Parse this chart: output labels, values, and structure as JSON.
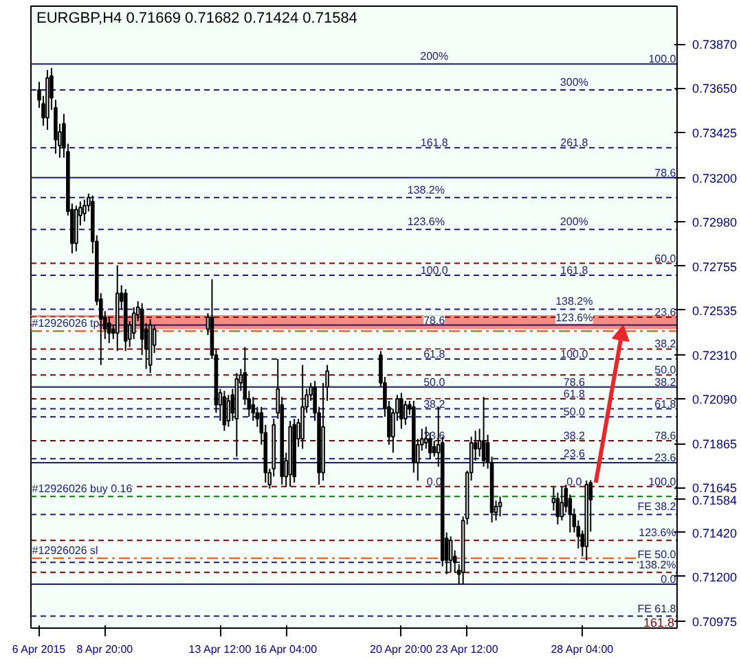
{
  "chart_data": {
    "type": "candlestick",
    "title": "EURGBP,H4  0.71669 0.71682 0.71424 0.71584",
    "x": [
      "2015-04-06T04:00",
      "2015-04-06T08:00",
      "2015-04-06T12:00",
      "2015-04-06T16:00",
      "2015-04-06T20:00",
      "2015-04-07T00:00",
      "2015-04-07T04:00",
      "2015-04-07T08:00",
      "2015-04-07T12:00",
      "2015-04-07T16:00",
      "2015-04-07T20:00",
      "2015-04-08T00:00",
      "2015-04-08T04:00",
      "2015-04-08T08:00",
      "2015-04-08T12:00",
      "2015-04-08T16:00",
      "2015-04-08T20:00",
      "2015-04-09T00:00",
      "2015-04-09T04:00",
      "2015-04-09T08:00",
      "2015-04-09T12:00",
      "2015-04-09T16:00",
      "2015-04-09T20:00",
      "2015-04-10T00:00",
      "2015-04-10T04:00",
      "2015-04-10T08:00",
      "2015-04-10T12:00",
      "2015-04-10T16:00",
      "2015-04-10T20:00",
      "2015-04-13T00:00",
      "2015-04-13T04:00",
      "2015-04-13T08:00",
      "2015-04-13T12:00",
      "2015-04-13T16:00",
      "2015-04-13T20:00",
      "2015-04-14T00:00",
      "2015-04-14T04:00",
      "2015-04-14T08:00",
      "2015-04-14T12:00",
      "2015-04-14T16:00",
      "2015-04-14T20:00",
      "2015-04-15T00:00",
      "2015-04-15T04:00",
      "2015-04-15T08:00",
      "2015-04-15T12:00",
      "2015-04-15T16:00",
      "2015-04-15T20:00",
      "2015-04-16T00:00",
      "2015-04-16T04:00",
      "2015-04-16T08:00",
      "2015-04-16T12:00",
      "2015-04-16T16:00",
      "2015-04-16T20:00",
      "2015-04-17T00:00",
      "2015-04-17T04:00",
      "2015-04-17T08:00",
      "2015-04-17T12:00",
      "2015-04-17T16:00",
      "2015-04-17T20:00",
      "2015-04-20T00:00",
      "2015-04-20T04:00",
      "2015-04-20T08:00",
      "2015-04-20T12:00",
      "2015-04-20T16:00",
      "2015-04-20T20:00",
      "2015-04-21T00:00",
      "2015-04-21T04:00",
      "2015-04-21T08:00",
      "2015-04-21T12:00",
      "2015-04-21T16:00",
      "2015-04-21T20:00",
      "2015-04-22T00:00",
      "2015-04-22T04:00",
      "2015-04-22T08:00",
      "2015-04-22T12:00",
      "2015-04-22T16:00",
      "2015-04-22T20:00",
      "2015-04-23T00:00",
      "2015-04-23T04:00",
      "2015-04-23T08:00",
      "2015-04-23T12:00",
      "2015-04-23T16:00",
      "2015-04-23T20:00",
      "2015-04-24T00:00",
      "2015-04-24T04:00",
      "2015-04-24T08:00",
      "2015-04-24T12:00",
      "2015-04-24T16:00",
      "2015-04-24T20:00",
      "2015-04-27T00:00",
      "2015-04-27T04:00",
      "2015-04-27T08:00",
      "2015-04-27T12:00",
      "2015-04-27T16:00",
      "2015-04-27T20:00",
      "2015-04-28T00:00",
      "2015-04-28T04:00",
      "2015-04-28T08:00",
      "2015-04-28T12:00"
    ],
    "ohlc": [
      [
        0.7364,
        0.7368,
        0.7355,
        0.7359
      ],
      [
        0.7357,
        0.7361,
        0.7346,
        0.735
      ],
      [
        0.735,
        0.7374,
        0.7344,
        0.737
      ],
      [
        0.7371,
        0.7375,
        0.7354,
        0.736
      ],
      [
        0.7355,
        0.7359,
        0.7332,
        0.7339
      ],
      [
        0.7336,
        0.7347,
        0.733,
        0.7343
      ],
      [
        0.7347,
        0.7352,
        0.733,
        0.7335
      ],
      [
        0.7333,
        0.7337,
        0.7301,
        0.7303
      ],
      [
        0.7304,
        0.7307,
        0.7282,
        0.7287
      ],
      [
        0.7287,
        0.7306,
        0.7283,
        0.7304
      ],
      [
        0.7301,
        0.7308,
        0.7296,
        0.7305
      ],
      [
        0.7302,
        0.7309,
        0.7298,
        0.7306
      ],
      [
        0.7306,
        0.7312,
        0.7303,
        0.731
      ],
      [
        0.7308,
        0.7311,
        0.7282,
        0.7288
      ],
      [
        0.7288,
        0.7291,
        0.7256,
        0.7258
      ],
      [
        0.7259,
        0.7262,
        0.7226,
        0.7249
      ],
      [
        0.725,
        0.7253,
        0.7239,
        0.7244
      ],
      [
        0.7247,
        0.725,
        0.7237,
        0.7242
      ],
      [
        0.7244,
        0.7246,
        0.7239,
        0.7242
      ],
      [
        0.7242,
        0.7276,
        0.7233,
        0.7262
      ],
      [
        0.7262,
        0.7266,
        0.7254,
        0.7258
      ],
      [
        0.7262,
        0.7264,
        0.7233,
        0.7238
      ],
      [
        0.7239,
        0.7248,
        0.7235,
        0.7246
      ],
      [
        0.7242,
        0.7255,
        0.7239,
        0.7252
      ],
      [
        0.7251,
        0.7258,
        0.7248,
        0.7255
      ],
      [
        0.7254,
        0.7257,
        0.7231,
        0.7239
      ],
      [
        0.7244,
        0.7247,
        0.7224,
        0.7234
      ],
      [
        0.7226,
        0.7249,
        0.7222,
        0.7246
      ],
      [
        0.7236,
        0.7246,
        0.7232,
        0.7244
      ],
      [
        0.7244,
        0.7252,
        0.7241,
        0.725
      ],
      [
        0.725,
        0.7269,
        0.7229,
        0.7231
      ],
      [
        0.7231,
        0.7234,
        0.7202,
        0.7206
      ],
      [
        0.7206,
        0.7214,
        0.7198,
        0.7212
      ],
      [
        0.721,
        0.7213,
        0.7193,
        0.7196
      ],
      [
        0.7198,
        0.7211,
        0.7195,
        0.7208
      ],
      [
        0.7211,
        0.7214,
        0.7198,
        0.7202
      ],
      [
        0.7199,
        0.7222,
        0.718,
        0.7219
      ],
      [
        0.7217,
        0.7224,
        0.7213,
        0.7221
      ],
      [
        0.7222,
        0.7235,
        0.7206,
        0.7209
      ],
      [
        0.7209,
        0.7213,
        0.72,
        0.7204
      ],
      [
        0.7206,
        0.721,
        0.7198,
        0.7202
      ],
      [
        0.7202,
        0.7205,
        0.7195,
        0.7199
      ],
      [
        0.7202,
        0.7205,
        0.7186,
        0.7192
      ],
      [
        0.7192,
        0.7196,
        0.7167,
        0.7172
      ],
      [
        0.7166,
        0.7174,
        0.7164,
        0.7172
      ],
      [
        0.7174,
        0.7199,
        0.717,
        0.7196
      ],
      [
        0.7202,
        0.7229,
        0.7199,
        0.7214
      ],
      [
        0.7206,
        0.721,
        0.7166,
        0.717
      ],
      [
        0.717,
        0.7182,
        0.7165,
        0.7178
      ],
      [
        0.7171,
        0.7198,
        0.7165,
        0.7195
      ],
      [
        0.7196,
        0.7199,
        0.7167,
        0.717
      ],
      [
        0.7189,
        0.7199,
        0.7185,
        0.7197
      ],
      [
        0.7189,
        0.7226,
        0.7184,
        0.7205
      ],
      [
        0.7205,
        0.7214,
        0.7202,
        0.7211
      ],
      [
        0.7211,
        0.7217,
        0.7208,
        0.7215
      ],
      [
        0.7215,
        0.7218,
        0.7198,
        0.7202
      ],
      [
        0.7202,
        0.7205,
        0.7166,
        0.7172
      ],
      [
        0.7172,
        0.7217,
        0.7168,
        0.7195
      ],
      [
        0.7215,
        0.7226,
        0.7208,
        0.7223
      ],
      [
        0.7231,
        0.7233,
        0.7215,
        0.7217
      ],
      [
        0.7217,
        0.722,
        0.72,
        0.7204
      ],
      [
        0.7205,
        0.7208,
        0.7186,
        0.719
      ],
      [
        0.719,
        0.7204,
        0.7182,
        0.7202
      ],
      [
        0.7202,
        0.7211,
        0.7198,
        0.7209
      ],
      [
        0.7209,
        0.7212,
        0.7194,
        0.7199
      ],
      [
        0.7199,
        0.7208,
        0.7196,
        0.7206
      ],
      [
        0.7206,
        0.7208,
        0.7201,
        0.7204
      ],
      [
        0.7205,
        0.7208,
        0.7172,
        0.7177
      ],
      [
        0.7177,
        0.7189,
        0.7168,
        0.7186
      ],
      [
        0.7186,
        0.7194,
        0.7183,
        0.7189
      ],
      [
        0.7187,
        0.7195,
        0.7184,
        0.7189
      ],
      [
        0.7189,
        0.7192,
        0.7179,
        0.7182
      ],
      [
        0.7185,
        0.7188,
        0.718,
        0.7182
      ],
      [
        0.7182,
        0.7205,
        0.7175,
        0.7186
      ],
      [
        0.7187,
        0.719,
        0.7125,
        0.7128
      ],
      [
        0.7139,
        0.7142,
        0.7121,
        0.7128
      ],
      [
        0.7128,
        0.714,
        0.7122,
        0.7138
      ],
      [
        0.713,
        0.7133,
        0.7122,
        0.7127
      ],
      [
        0.7123,
        0.7126,
        0.7116,
        0.7121
      ],
      [
        0.7122,
        0.715,
        0.7116,
        0.7148
      ],
      [
        0.7149,
        0.7173,
        0.7146,
        0.7172
      ],
      [
        0.7172,
        0.719,
        0.7168,
        0.7187
      ],
      [
        0.7187,
        0.7193,
        0.7178,
        0.7184
      ],
      [
        0.7184,
        0.7194,
        0.718,
        0.7188
      ],
      [
        0.7188,
        0.721,
        0.7175,
        0.7178
      ],
      [
        0.7187,
        0.7191,
        0.7174,
        0.7177
      ],
      [
        0.7177,
        0.718,
        0.7147,
        0.7152
      ],
      [
        0.7152,
        0.7158,
        0.7148,
        0.7155
      ],
      [
        0.7155,
        0.716,
        0.715,
        0.7157
      ],
      [
        0.7157,
        0.7165,
        0.7153,
        0.7159
      ],
      [
        0.7159,
        0.7162,
        0.7146,
        0.715
      ],
      [
        0.715,
        0.7165,
        0.7148,
        0.7157
      ],
      [
        0.7164,
        0.7166,
        0.7152,
        0.7155
      ],
      [
        0.7159,
        0.7161,
        0.7142,
        0.7151
      ],
      [
        0.7151,
        0.7154,
        0.7142,
        0.7145
      ],
      [
        0.7145,
        0.7148,
        0.7134,
        0.714
      ],
      [
        0.7141,
        0.7143,
        0.713,
        0.7135
      ],
      [
        0.7135,
        0.7168,
        0.7128,
        0.7166
      ],
      [
        0.71669,
        0.71682,
        0.71424,
        0.71584
      ]
    ],
    "series": [
      {
        "type": "line",
        "color": "#e8262b",
        "x": [
          "2015-04-28T17:00",
          "2015-04-29T18:00"
        ],
        "values": [
          0.7167,
          0.7241
        ]
      }
    ],
    "xlim": [
      "2015-04-05T20:00",
      "2015-05-02T00:00"
    ],
    "xticks": [
      {
        "value": "2015-04-06T04:00",
        "label": "6 Apr 2015"
      },
      {
        "value": "2015-04-08T20:00",
        "label": "8 Apr 20:00"
      },
      {
        "value": "2015-04-13T12:00",
        "label": "13 Apr 12:00"
      },
      {
        "value": "2015-04-16T04:00",
        "label": "16 Apr 04:00"
      },
      {
        "value": "2015-04-20T20:00",
        "label": "20 Apr 20:00"
      },
      {
        "value": "2015-04-23T12:00",
        "label": "23 Apr 12:00"
      },
      {
        "value": "2015-04-28T04:00",
        "label": "28 Apr 04:00"
      }
    ],
    "ylim": [
      0.7094,
      0.7406
    ],
    "yticks": [
      {
        "value": 0.7387,
        "label": "0.73870"
      },
      {
        "value": 0.7365,
        "label": "0.73650"
      },
      {
        "value": 0.73425,
        "label": "0.73425"
      },
      {
        "value": 0.732,
        "label": "0.73200"
      },
      {
        "value": 0.7298,
        "label": "0.72980"
      },
      {
        "value": 0.72755,
        "label": "0.72755"
      },
      {
        "value": 0.72535,
        "label": "0.72535"
      },
      {
        "value": 0.7231,
        "label": "0.72310"
      },
      {
        "value": 0.7209,
        "label": "0.72090"
      },
      {
        "value": 0.71865,
        "label": "0.71865"
      },
      {
        "value": 0.71645,
        "label": "0.71645"
      },
      {
        "value": 0.71584,
        "label": "0.71584"
      },
      {
        "value": 0.7142,
        "label": "0.71420"
      },
      {
        "value": 0.712,
        "label": "0.71200"
      },
      {
        "value": 0.70975,
        "label": "0.70975"
      }
    ],
    "grid": false,
    "bands": [
      {
        "axis": "y",
        "from": 0.7244,
        "to": 0.7251,
        "color": "#fa8072"
      }
    ],
    "ref_lines": [
      {
        "axis": "y",
        "value": 0.7377,
        "color": "#1b1b7a",
        "line_style": "solid"
      },
      {
        "axis": "y",
        "value": 0.7364,
        "color": "#1b1b7a",
        "line_style": "dashed"
      },
      {
        "axis": "y",
        "value": 0.7335,
        "color": "#1b1b7a",
        "line_style": "dashed"
      },
      {
        "axis": "y",
        "value": 0.732,
        "color": "#1b1b7a",
        "line_style": "solid"
      },
      {
        "axis": "y",
        "value": 0.731,
        "color": "#1b1b7a",
        "line_style": "dashed"
      },
      {
        "axis": "y",
        "value": 0.7294,
        "color": "#1b1b7a",
        "line_style": "dashed"
      },
      {
        "axis": "y",
        "value": 0.7277,
        "color": "#8b0000",
        "line_style": "dashed"
      },
      {
        "axis": "y",
        "value": 0.7271,
        "color": "#1b1b7a",
        "line_style": "dashed"
      },
      {
        "axis": "y",
        "value": 0.7254,
        "color": "#1b1b7a",
        "line_style": "dashed"
      },
      {
        "axis": "y",
        "value": 0.725,
        "color": "#8b0000",
        "line_style": "dashed"
      },
      {
        "axis": "y",
        "value": 0.7246,
        "color": "#1b1b7a",
        "line_style": "solid"
      },
      {
        "axis": "y",
        "value": 0.7243,
        "color": "#ff4500",
        "line_style": "dashdot"
      },
      {
        "axis": "y",
        "value": 0.7234,
        "color": "#8b0000",
        "line_style": "dashed"
      },
      {
        "axis": "y",
        "value": 0.7229,
        "color": "#1b1b7a",
        "line_style": "dashed"
      },
      {
        "axis": "y",
        "value": 0.7221,
        "color": "#8b0000",
        "line_style": "dashed"
      },
      {
        "axis": "y",
        "value": 0.7215,
        "color": "#1b1b7a",
        "line_style": "solid"
      },
      {
        "axis": "y",
        "value": 0.7209,
        "color": "#8b0000",
        "line_style": "dashed"
      },
      {
        "axis": "y",
        "value": 0.7204,
        "color": "#1b1b7a",
        "line_style": "dashed"
      },
      {
        "axis": "y",
        "value": 0.72,
        "color": "#1b1b7a",
        "line_style": "dashed"
      },
      {
        "axis": "y",
        "value": 0.7188,
        "color": "#8b0000",
        "line_style": "dashed"
      },
      {
        "axis": "y",
        "value": 0.7179,
        "color": "#1b1b7a",
        "line_style": "dashed"
      },
      {
        "axis": "y",
        "value": 0.7177,
        "color": "#1b1b7a",
        "line_style": "solid"
      },
      {
        "axis": "y",
        "value": 0.7165,
        "color": "#8b0000",
        "line_style": "dashed"
      },
      {
        "axis": "y",
        "value": 0.716,
        "color": "#008000",
        "line_style": "dashed"
      },
      {
        "axis": "y",
        "value": 0.7151,
        "color": "#1b1b7a",
        "line_style": "dashed"
      },
      {
        "axis": "y",
        "value": 0.7138,
        "color": "#8b0000",
        "line_style": "dashed"
      },
      {
        "axis": "y",
        "value": 0.7129,
        "color": "#ff4500",
        "line_style": "dashdot"
      },
      {
        "axis": "y",
        "value": 0.7127,
        "color": "#1b1b7a",
        "line_style": "dashed"
      },
      {
        "axis": "y",
        "value": 0.7122,
        "color": "#8b0000",
        "line_style": "dashed"
      },
      {
        "axis": "y",
        "value": 0.7116,
        "color": "#1b1b7a",
        "line_style": "solid"
      },
      {
        "axis": "y",
        "value": 0.71,
        "color": "#1b1b7a",
        "line_style": "dashed"
      }
    ],
    "annotations": [
      {
        "text": "200%",
        "x": "2015-04-22T04:00",
        "y": 0.7377
      },
      {
        "text": "100.0",
        "x": "2015-05-01T23:00",
        "y": 0.7377
      },
      {
        "text": "300%",
        "x": "2015-04-27T20:00",
        "y": 0.7364
      },
      {
        "text": "161.8",
        "x": "2015-04-22T04:00",
        "y": 0.7335
      },
      {
        "text": "261.8",
        "x": "2015-04-27T20:00",
        "y": 0.7335
      },
      {
        "text": "78.6",
        "x": "2015-05-01T23:00",
        "y": 0.732
      },
      {
        "text": "138.2%",
        "x": "2015-04-21T20:00",
        "y": 0.731
      },
      {
        "text": "123.6%",
        "x": "2015-04-21T20:00",
        "y": 0.7294
      },
      {
        "text": "200%",
        "x": "2015-04-27T20:00",
        "y": 0.7294
      },
      {
        "text": "60.0",
        "x": "2015-05-01T23:00",
        "y": 0.7277
      },
      {
        "text": "100.0",
        "x": "2015-04-22T04:00",
        "y": 0.7271
      },
      {
        "text": "161.8",
        "x": "2015-04-27T20:00",
        "y": 0.7271
      },
      {
        "text": "138.2%",
        "x": "2015-04-27T20:00",
        "y": 0.7254
      },
      {
        "text": "23.6",
        "x": "2015-05-01T23:00",
        "y": 0.725
      },
      {
        "text": "78.6",
        "x": "2015-04-22T04:00",
        "y": 0.7246
      },
      {
        "text": "123.6%",
        "x": "2015-04-27T20:00",
        "y": 0.7246
      },
      {
        "text": "#12926026 tp",
        "x": "2015-04-05T21:00",
        "y": 0.7243
      },
      {
        "text": "38.2",
        "x": "2015-05-01T23:00",
        "y": 0.7234
      },
      {
        "text": "61.8",
        "x": "2015-04-22T04:00",
        "y": 0.7229
      },
      {
        "text": "100.0",
        "x": "2015-04-27T20:00",
        "y": 0.7229
      },
      {
        "text": "50.0",
        "x": "2015-05-01T23:00",
        "y": 0.7221
      },
      {
        "text": "50.0",
        "x": "2015-04-22T04:00",
        "y": 0.7215
      },
      {
        "text": "78.6",
        "x": "2015-04-27T20:00",
        "y": 0.7215
      },
      {
        "text": "38.2",
        "x": "2015-05-01T23:00",
        "y": 0.7215
      },
      {
        "text": "61.8",
        "x": "2015-04-27T20:00",
        "y": 0.7209
      },
      {
        "text": "61.8",
        "x": "2015-05-01T23:00",
        "y": 0.7204
      },
      {
        "text": "38.2",
        "x": "2015-04-22T04:00",
        "y": 0.7204
      },
      {
        "text": "50.0",
        "x": "2015-04-27T20:00",
        "y": 0.72
      },
      {
        "text": "23.6",
        "x": "2015-04-22T04:00",
        "y": 0.7188
      },
      {
        "text": "38.2",
        "x": "2015-04-27T20:00",
        "y": 0.7188
      },
      {
        "text": "78.6",
        "x": "2015-05-01T23:00",
        "y": 0.7188
      },
      {
        "text": "23.6",
        "x": "2015-04-27T20:00",
        "y": 0.7179
      },
      {
        "text": "23.6",
        "x": "2015-05-01T23:00",
        "y": 0.7177
      },
      {
        "text": "0.0",
        "x": "2015-04-22T04:00",
        "y": 0.7165
      },
      {
        "text": "0.0",
        "x": "2015-04-27T20:00",
        "y": 0.7165
      },
      {
        "text": "100.0",
        "x": "2015-05-01T23:00",
        "y": 0.7165
      },
      {
        "text": "#12926026 buy 0.16",
        "x": "2015-04-05T21:00",
        "y": 0.716
      },
      {
        "text": "FE 38.2",
        "x": "2015-05-01T23:00",
        "y": 0.7151
      },
      {
        "text": "123.6%",
        "x": "2015-05-01T23:00",
        "y": 0.7138
      },
      {
        "text": "#12926026 sl",
        "x": "2015-04-05T21:00",
        "y": 0.7129
      },
      {
        "text": "FE 50.0",
        "x": "2015-05-01T23:00",
        "y": 0.7127
      },
      {
        "text": "138.2%",
        "x": "2015-05-01T23:00",
        "y": 0.7122
      },
      {
        "text": "0.0",
        "x": "2015-05-01T23:00",
        "y": 0.7116
      },
      {
        "text": "FE 61.8",
        "x": "2015-05-01T23:00",
        "y": 0.71
      },
      "161.8"
    ]
  }
}
